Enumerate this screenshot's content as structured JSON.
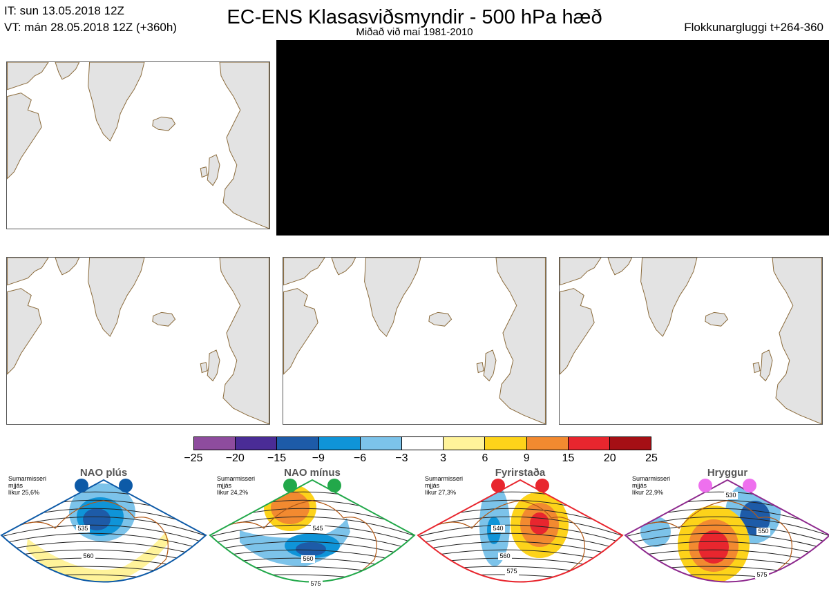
{
  "header": {
    "it_line": "IT: sun 13.05.2018 12Z",
    "vt_line": "VT: mán 28.05.2018 12Z  (+360h)",
    "title": "EC-ENS Klasasviðsmyndir - 500 hPa hæð",
    "subtitle": "Miðað við maí 1981-2010",
    "window": "Flokkunargluggi t+264-360"
  },
  "colorbar": {
    "ticks": [
      "−25",
      "−20",
      "−15",
      "−9",
      "−6",
      "−3",
      "3",
      "6",
      "9",
      "15",
      "20",
      "25"
    ],
    "colors": [
      "#8e4c9e",
      "#4a2c96",
      "#1d5ba8",
      "#0f94d8",
      "#7cc3ea",
      "#ffffff",
      "#fff39a",
      "#fdd31a",
      "#f28a30",
      "#e8262e",
      "#a50f15"
    ]
  },
  "clusters": [
    {
      "name": "NAO plús",
      "season": "Sumarmisseri",
      "freq": "mjjás",
      "prob": "líkur 25,6%",
      "color": "#0d5aa7",
      "contours": [
        "535",
        "560"
      ]
    },
    {
      "name": "NAO mínus",
      "season": "Sumarmisseri",
      "freq": "mjjás",
      "prob": "líkur 24,2%",
      "color": "#22a84a",
      "contours": [
        "545",
        "560",
        "575"
      ]
    },
    {
      "name": "Fyrirstaða",
      "season": "Sumarmisseri",
      "freq": "mjjás",
      "prob": "líkur 27,3%",
      "color": "#e8262e",
      "contours": [
        "540",
        "560",
        "575"
      ]
    },
    {
      "name": "Hryggur",
      "season": "Sumarmisseri",
      "freq": "mjjás",
      "prob": "líkur 22,9%",
      "color": "#8e2a8e",
      "dot_color": "#ee70ee",
      "contours": [
        "530",
        "550",
        "575"
      ]
    }
  ]
}
